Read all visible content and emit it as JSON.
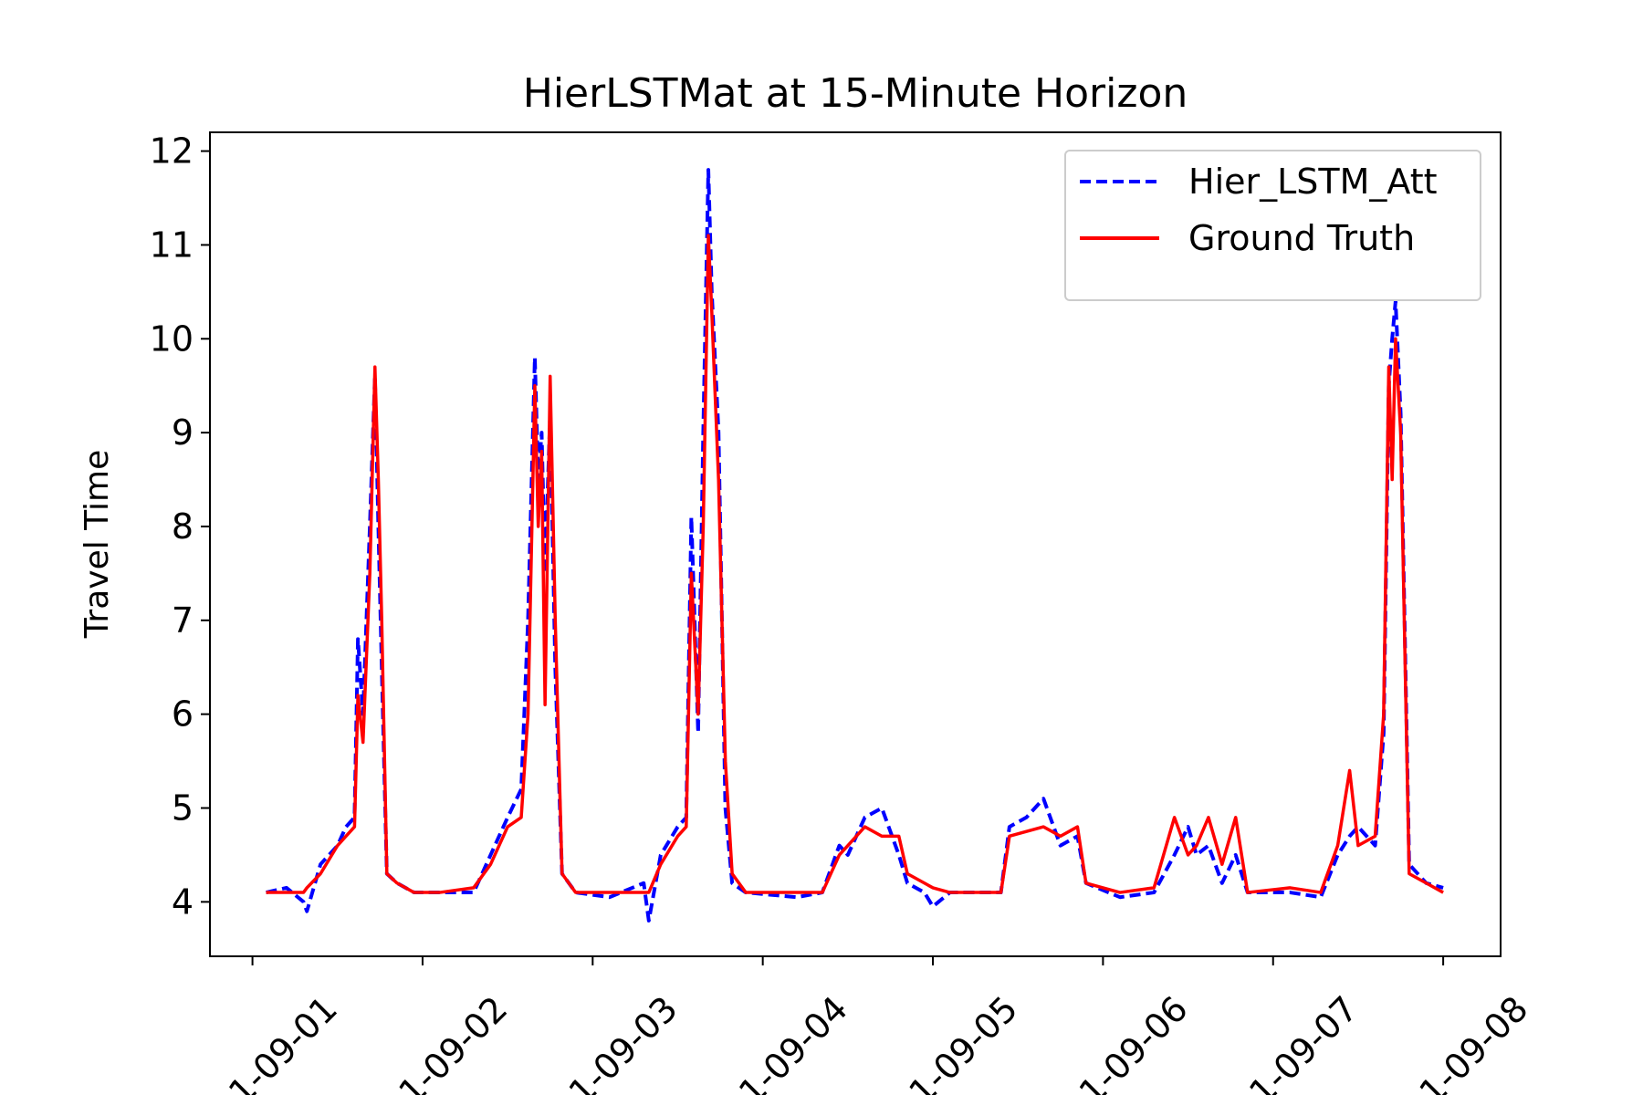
{
  "chart_data": {
    "type": "line",
    "title": "HierLSTMat at 15-Minute Horizon",
    "y_label": "Travel Time",
    "x": [
      1.08,
      1.2,
      1.3,
      1.32,
      1.4,
      1.5,
      1.55,
      1.6,
      1.62,
      1.65,
      1.69,
      1.72,
      1.74,
      1.76,
      1.79,
      1.85,
      1.95,
      2.1,
      2.3,
      2.4,
      2.5,
      2.58,
      2.62,
      2.66,
      2.68,
      2.7,
      2.72,
      2.75,
      2.78,
      2.82,
      2.9,
      3.1,
      3.3,
      3.33,
      3.4,
      3.5,
      3.55,
      3.58,
      3.62,
      3.65,
      3.68,
      3.7,
      3.74,
      3.78,
      3.82,
      3.9,
      4.2,
      4.35,
      4.45,
      4.5,
      4.6,
      4.7,
      4.8,
      4.85,
      4.95,
      5.0,
      5.1,
      5.4,
      5.45,
      5.55,
      5.65,
      5.75,
      5.85,
      5.9,
      6.1,
      6.3,
      6.42,
      6.5,
      6.55,
      6.62,
      6.7,
      6.78,
      6.85,
      7.1,
      7.28,
      7.38,
      7.45,
      7.5,
      7.6,
      7.65,
      7.68,
      7.7,
      7.72,
      7.75,
      7.8,
      7.9,
      8.0
    ],
    "series": [
      {
        "name": "Hier_LSTM_Att",
        "color": "#0000ff",
        "dash": true,
        "values": [
          4.1,
          4.15,
          4.0,
          3.9,
          4.4,
          4.6,
          4.8,
          4.9,
          6.8,
          6.0,
          8.0,
          9.6,
          8.0,
          6.5,
          4.3,
          4.2,
          4.1,
          4.1,
          4.1,
          4.5,
          4.9,
          5.2,
          7.0,
          9.8,
          8.5,
          9.0,
          7.5,
          9.2,
          6.5,
          4.3,
          4.1,
          4.05,
          4.2,
          3.8,
          4.5,
          4.8,
          4.9,
          8.1,
          5.8,
          9.0,
          11.8,
          10.5,
          9.0,
          5.0,
          4.2,
          4.1,
          4.05,
          4.1,
          4.6,
          4.5,
          4.9,
          5.0,
          4.5,
          4.2,
          4.1,
          3.95,
          4.1,
          4.1,
          4.8,
          4.9,
          5.1,
          4.6,
          4.7,
          4.2,
          4.05,
          4.1,
          4.5,
          4.8,
          4.5,
          4.6,
          4.2,
          4.5,
          4.1,
          4.1,
          4.05,
          4.5,
          4.7,
          4.8,
          4.6,
          5.8,
          9.5,
          10.0,
          10.4,
          9.2,
          4.4,
          4.2,
          4.15
        ]
      },
      {
        "name": "Ground Truth",
        "color": "#ff0000",
        "dash": false,
        "values": [
          4.1,
          4.1,
          4.1,
          4.15,
          4.3,
          4.6,
          4.7,
          4.8,
          6.2,
          5.7,
          7.5,
          9.7,
          8.5,
          7.0,
          4.3,
          4.2,
          4.1,
          4.1,
          4.15,
          4.4,
          4.8,
          4.9,
          6.0,
          9.5,
          8.0,
          8.8,
          6.1,
          9.6,
          7.0,
          4.3,
          4.1,
          4.1,
          4.1,
          4.1,
          4.4,
          4.7,
          4.8,
          7.5,
          6.0,
          8.0,
          11.1,
          10.3,
          8.5,
          5.5,
          4.3,
          4.1,
          4.1,
          4.1,
          4.5,
          4.6,
          4.8,
          4.7,
          4.7,
          4.3,
          4.2,
          4.15,
          4.1,
          4.1,
          4.7,
          4.75,
          4.8,
          4.7,
          4.8,
          4.2,
          4.1,
          4.15,
          4.9,
          4.5,
          4.6,
          4.9,
          4.4,
          4.9,
          4.1,
          4.15,
          4.1,
          4.6,
          5.4,
          4.6,
          4.7,
          6.0,
          9.7,
          8.5,
          10.0,
          9.0,
          4.3,
          4.2,
          4.1
        ]
      }
    ],
    "xlim": [
      0.75,
      8.3375
    ],
    "xticks": [
      {
        "value": 1,
        "label": "1-09-01"
      },
      {
        "value": 2,
        "label": "1-09-02"
      },
      {
        "value": 3,
        "label": "1-09-03"
      },
      {
        "value": 4,
        "label": "1-09-04"
      },
      {
        "value": 5,
        "label": "1-09-05"
      },
      {
        "value": 6,
        "label": "1-09-06"
      },
      {
        "value": 7,
        "label": "1-09-07"
      },
      {
        "value": 8,
        "label": "1-09-08"
      }
    ],
    "ylim": [
      3.42,
      12.2
    ],
    "yticks": [
      4,
      5,
      6,
      7,
      8,
      9,
      10,
      11,
      12
    ],
    "legend": "upper right",
    "grid": false
  }
}
